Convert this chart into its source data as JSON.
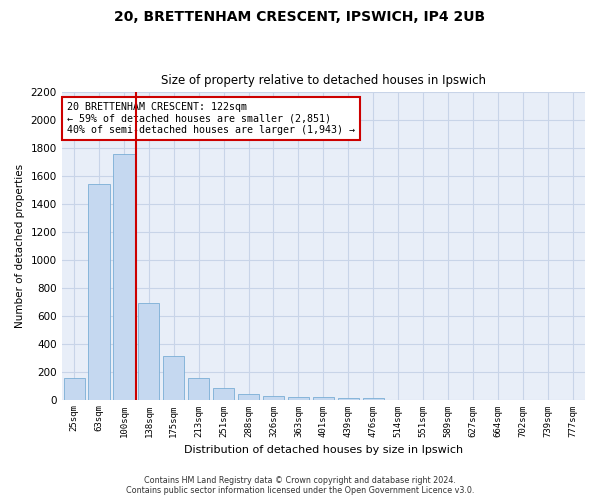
{
  "title_line1": "20, BRETTENHAM CRESCENT, IPSWICH, IP4 2UB",
  "title_line2": "Size of property relative to detached houses in Ipswich",
  "xlabel": "Distribution of detached houses by size in Ipswich",
  "ylabel": "Number of detached properties",
  "categories": [
    "25sqm",
    "63sqm",
    "100sqm",
    "138sqm",
    "175sqm",
    "213sqm",
    "251sqm",
    "288sqm",
    "326sqm",
    "363sqm",
    "401sqm",
    "439sqm",
    "476sqm",
    "514sqm",
    "551sqm",
    "589sqm",
    "627sqm",
    "664sqm",
    "702sqm",
    "739sqm",
    "777sqm"
  ],
  "values": [
    155,
    1540,
    1760,
    690,
    310,
    155,
    80,
    40,
    25,
    20,
    15,
    10,
    10,
    0,
    0,
    0,
    0,
    0,
    0,
    0,
    0
  ],
  "bar_color": "#c5d8f0",
  "bar_edge_color": "#7aaed6",
  "grid_color": "#c8d4e8",
  "background_color": "#e8eef8",
  "vline_color": "#cc0000",
  "annotation_text": "20 BRETTENHAM CRESCENT: 122sqm\n← 59% of detached houses are smaller (2,851)\n40% of semi-detached houses are larger (1,943) →",
  "annotation_box_color": "#ffffff",
  "annotation_box_edge": "#cc0000",
  "ylim": [
    0,
    2200
  ],
  "yticks": [
    0,
    200,
    400,
    600,
    800,
    1000,
    1200,
    1400,
    1600,
    1800,
    2000,
    2200
  ],
  "footer_line1": "Contains HM Land Registry data © Crown copyright and database right 2024.",
  "footer_line2": "Contains public sector information licensed under the Open Government Licence v3.0."
}
